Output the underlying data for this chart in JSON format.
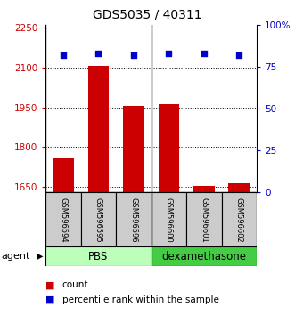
{
  "title": "GDS5035 / 40311",
  "samples": [
    "GSM596594",
    "GSM596595",
    "GSM596596",
    "GSM596600",
    "GSM596601",
    "GSM596602"
  ],
  "counts": [
    1760,
    2107,
    1955,
    1963,
    1652,
    1662
  ],
  "percentiles": [
    82,
    83,
    82,
    83,
    83,
    82
  ],
  "ylim_left": [
    1630,
    2260
  ],
  "yticks_left": [
    1650,
    1800,
    1950,
    2100,
    2250
  ],
  "ylim_right": [
    0,
    100
  ],
  "yticks_right": [
    0,
    25,
    50,
    75,
    100
  ],
  "yticklabels_right": [
    "0",
    "25",
    "50",
    "75",
    "100%"
  ],
  "bar_color": "#cc0000",
  "dot_color": "#0000cc",
  "pbs_color": "#bbffbb",
  "dex_color": "#44cc44",
  "pbs_label": "PBS",
  "dex_label": "dexamethasone",
  "legend_count": "count",
  "legend_percentile": "percentile rank within the sample",
  "tick_label_color_left": "#cc0000",
  "tick_label_color_right": "#0000cc",
  "sample_box_color": "#cccccc"
}
